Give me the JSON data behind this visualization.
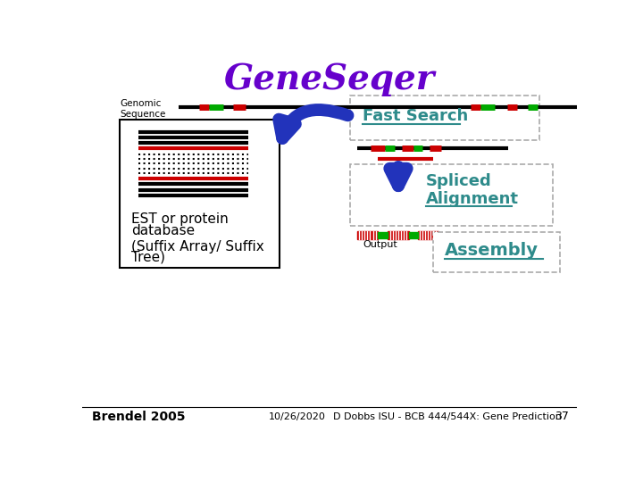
{
  "title": "GeneSeqer",
  "title_color": "#6600cc",
  "title_fontsize": 28,
  "bg_color": "#ffffff",
  "genomic_label": "Genomic\nSequence",
  "fast_search_label": "Fast Search",
  "spliced_label1": "Spliced",
  "spliced_label2": "Alignment",
  "assembly_label": "Assembly",
  "est_label1": "EST or protein",
  "est_label2": "database",
  "est_label3": "(Suffix Array/ Suffix",
  "est_label4": "Tree)",
  "output_label": "Output",
  "footer_left": "Brendel 2005",
  "footer_center": "10/26/2020",
  "footer_right": "D Dobbs ISU - BCB 444/544X: Gene Prediction",
  "footer_num": "37",
  "teal_color": "#2e8b8b",
  "black_color": "#000000",
  "red_color": "#cc0000",
  "green_color": "#00aa00",
  "blue_color": "#2233bb",
  "gray_color": "#aaaaaa"
}
